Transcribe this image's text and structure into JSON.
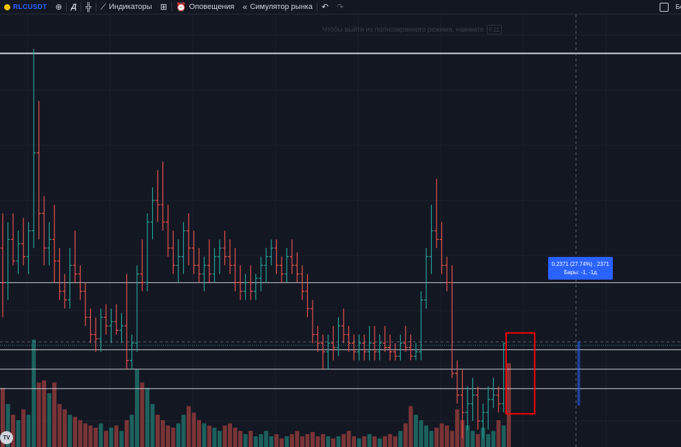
{
  "toolbar": {
    "symbol": "RLCUSDT",
    "timeframe": "Д",
    "indicators_label": "Индикаторы",
    "alerts_label": "Оповещения",
    "replay_label": "Симулятор рынка",
    "right_cut_label": "Бе",
    "icons": [
      "plus-circle-icon",
      "compare-icon",
      "candles-icon",
      "indicators-icon",
      "layout-grid-icon",
      "alarm-clock-icon",
      "rewind-icon",
      "undo-icon",
      "redo-icon"
    ]
  },
  "fullscreen_hint": {
    "text": "Чтобы выйти из полноэкранного режима, нажмите",
    "key": "F11"
  },
  "measure_tooltip": {
    "line1": "0.2371 (27.74%) , 2371",
    "line2": "Бары: -1, -1д"
  },
  "logo_text": "TV",
  "colors": {
    "background": "#131722",
    "up": "#26a69a",
    "down": "#ef5350",
    "accent": "#2962ff",
    "annotation": "#ff0000",
    "level_line": "#d1d4dc"
  },
  "chart_data": {
    "type": "bar",
    "style": "ohlc",
    "symbol": "RLCUSDT",
    "timeframe": "1D",
    "price_scale": {
      "top": 1.62,
      "bottom": 0.62,
      "labels_visible": false
    },
    "horizontal_levels": [
      1.53,
      1.0,
      0.845,
      0.8,
      0.755
    ],
    "current_price_line": 0.855,
    "ohlc": [
      [
        1.08,
        1.16,
        0.92,
        1.0
      ],
      [
        1.0,
        1.14,
        0.96,
        1.1
      ],
      [
        1.1,
        1.16,
        1.04,
        1.05
      ],
      [
        1.05,
        1.12,
        1.02,
        1.09
      ],
      [
        1.09,
        1.15,
        1.04,
        1.06
      ],
      [
        1.06,
        1.14,
        1.02,
        1.12
      ],
      [
        1.12,
        1.54,
        1.08,
        1.3
      ],
      [
        1.3,
        1.42,
        1.1,
        1.16
      ],
      [
        1.16,
        1.2,
        1.04,
        1.08
      ],
      [
        1.08,
        1.14,
        1.04,
        1.1
      ],
      [
        1.1,
        1.18,
        1.0,
        1.05
      ],
      [
        1.05,
        1.08,
        0.96,
        0.98
      ],
      [
        0.98,
        1.02,
        0.94,
        0.96
      ],
      [
        0.96,
        1.08,
        0.94,
        1.04
      ],
      [
        1.04,
        1.12,
        1.0,
        1.02
      ],
      [
        1.02,
        1.04,
        0.96,
        0.98
      ],
      [
        0.98,
        1.0,
        0.9,
        0.92
      ],
      [
        0.92,
        0.94,
        0.86,
        0.88
      ],
      [
        0.88,
        0.92,
        0.84,
        0.87
      ],
      [
        0.87,
        0.94,
        0.84,
        0.92
      ],
      [
        0.92,
        0.95,
        0.88,
        0.9
      ],
      [
        0.9,
        0.94,
        0.86,
        0.91
      ],
      [
        0.91,
        0.95,
        0.88,
        0.89
      ],
      [
        0.89,
        0.93,
        0.86,
        0.9
      ],
      [
        0.9,
        1.02,
        0.8,
        0.82
      ],
      [
        0.82,
        0.88,
        0.8,
        0.86
      ],
      [
        0.86,
        1.04,
        0.84,
        1.02
      ],
      [
        1.02,
        1.1,
        0.98,
        1.0
      ],
      [
        1.0,
        1.16,
        0.98,
        1.14
      ],
      [
        1.14,
        1.22,
        1.1,
        1.19
      ],
      [
        1.19,
        1.26,
        1.14,
        1.18
      ],
      [
        1.18,
        1.28,
        1.12,
        1.14
      ],
      [
        1.14,
        1.18,
        1.06,
        1.08
      ],
      [
        1.08,
        1.12,
        1.02,
        1.04
      ],
      [
        1.04,
        1.1,
        1.0,
        1.06
      ],
      [
        1.06,
        1.14,
        1.02,
        1.12
      ],
      [
        1.12,
        1.16,
        1.04,
        1.08
      ],
      [
        1.08,
        1.12,
        1.02,
        1.04
      ],
      [
        1.04,
        1.08,
        1.0,
        1.02
      ],
      [
        1.02,
        1.06,
        0.98,
        1.04
      ],
      [
        1.04,
        1.1,
        1.0,
        1.02
      ],
      [
        1.02,
        1.08,
        1.0,
        1.06
      ],
      [
        1.06,
        1.1,
        1.02,
        1.08
      ],
      [
        1.08,
        1.12,
        1.04,
        1.06
      ],
      [
        1.06,
        1.1,
        1.02,
        1.04
      ],
      [
        1.04,
        1.08,
        0.98,
        1.0
      ],
      [
        1.0,
        1.04,
        0.96,
        0.98
      ],
      [
        0.98,
        1.02,
        0.96,
        1.0
      ],
      [
        1.0,
        1.04,
        0.96,
        0.98
      ],
      [
        0.98,
        1.02,
        0.96,
        1.01
      ],
      [
        1.01,
        1.06,
        0.98,
        1.04
      ],
      [
        1.04,
        1.08,
        1.0,
        1.06
      ],
      [
        1.06,
        1.1,
        1.04,
        1.08
      ],
      [
        1.08,
        1.1,
        1.02,
        1.04
      ],
      [
        1.04,
        1.06,
        1.0,
        1.02
      ],
      [
        1.02,
        1.08,
        1.0,
        1.06
      ],
      [
        1.06,
        1.1,
        1.02,
        1.04
      ],
      [
        1.04,
        1.07,
        1.0,
        1.02
      ],
      [
        1.02,
        1.04,
        0.96,
        0.98
      ],
      [
        0.98,
        1.02,
        0.92,
        0.94
      ],
      [
        0.94,
        0.96,
        0.86,
        0.88
      ],
      [
        0.88,
        0.9,
        0.84,
        0.86
      ],
      [
        0.86,
        0.88,
        0.8,
        0.84
      ],
      [
        0.84,
        0.88,
        0.8,
        0.86
      ],
      [
        0.86,
        0.9,
        0.82,
        0.85
      ],
      [
        0.85,
        0.92,
        0.83,
        0.9
      ],
      [
        0.9,
        0.94,
        0.86,
        0.88
      ],
      [
        0.88,
        0.9,
        0.84,
        0.86
      ],
      [
        0.86,
        0.88,
        0.82,
        0.84
      ],
      [
        0.84,
        0.88,
        0.82,
        0.86
      ],
      [
        0.86,
        0.88,
        0.82,
        0.84
      ],
      [
        0.84,
        0.9,
        0.82,
        0.86
      ],
      [
        0.86,
        0.9,
        0.82,
        0.84
      ],
      [
        0.84,
        0.88,
        0.82,
        0.86
      ],
      [
        0.86,
        0.9,
        0.84,
        0.85
      ],
      [
        0.85,
        0.88,
        0.82,
        0.84
      ],
      [
        0.84,
        0.86,
        0.82,
        0.83
      ],
      [
        0.83,
        0.88,
        0.82,
        0.86
      ],
      [
        0.86,
        0.9,
        0.84,
        0.85
      ],
      [
        0.85,
        0.88,
        0.82,
        0.83
      ],
      [
        0.83,
        0.86,
        0.82,
        0.84
      ],
      [
        0.84,
        0.98,
        0.82,
        0.96
      ],
      [
        0.96,
        1.08,
        0.94,
        1.06
      ],
      [
        1.06,
        1.18,
        1.02,
        1.12
      ],
      [
        1.12,
        1.24,
        1.08,
        1.1
      ],
      [
        1.1,
        1.14,
        1.02,
        1.04
      ],
      [
        1.04,
        1.06,
        0.98,
        1.0
      ],
      [
        1.0,
        1.04,
        0.78,
        0.79
      ],
      [
        0.79,
        0.82,
        0.72,
        0.74
      ],
      [
        0.74,
        0.8,
        0.64,
        0.7
      ],
      [
        0.7,
        0.76,
        0.66,
        0.72
      ],
      [
        0.72,
        0.78,
        0.68,
        0.74
      ],
      [
        0.74,
        0.76,
        0.66,
        0.68
      ],
      [
        0.68,
        0.72,
        0.64,
        0.7
      ],
      [
        0.7,
        0.76,
        0.66,
        0.73
      ],
      [
        0.73,
        0.78,
        0.71,
        0.74
      ],
      [
        0.74,
        0.76,
        0.7,
        0.72
      ],
      [
        0.72,
        0.86,
        0.7,
        0.86
      ]
    ],
    "volume": [
      0.55,
      0.4,
      0.3,
      0.25,
      0.35,
      0.3,
      1.0,
      0.6,
      0.62,
      0.5,
      0.6,
      0.4,
      0.35,
      0.3,
      0.28,
      0.25,
      0.22,
      0.2,
      0.18,
      0.22,
      0.15,
      0.18,
      0.2,
      0.15,
      0.25,
      0.3,
      0.72,
      0.6,
      0.55,
      0.4,
      0.3,
      0.25,
      0.2,
      0.18,
      0.22,
      0.3,
      0.38,
      0.32,
      0.25,
      0.22,
      0.2,
      0.18,
      0.15,
      0.2,
      0.22,
      0.18,
      0.15,
      0.12,
      0.15,
      0.1,
      0.12,
      0.15,
      0.1,
      0.12,
      0.08,
      0.1,
      0.12,
      0.15,
      0.1,
      0.12,
      0.14,
      0.1,
      0.12,
      0.1,
      0.08,
      0.1,
      0.12,
      0.15,
      0.1,
      0.08,
      0.1,
      0.12,
      0.1,
      0.08,
      0.1,
      0.12,
      0.1,
      0.15,
      0.22,
      0.38,
      0.3,
      0.25,
      0.2,
      0.15,
      0.18,
      0.22,
      0.2,
      0.15,
      0.35,
      0.25,
      0.2,
      0.15,
      0.12,
      0.18,
      0.12,
      0.15,
      0.25,
      0.2,
      0.78
    ],
    "annotation_box": {
      "from_bar": 98,
      "to_bar": 99,
      "price_top": 0.855,
      "price_bottom": 0.735
    },
    "measure": {
      "bar": 99,
      "price_from": 0.735,
      "price_to": 0.855
    },
    "crosshair_bar": 99,
    "crosshair_price": 0.855,
    "grid": true
  }
}
